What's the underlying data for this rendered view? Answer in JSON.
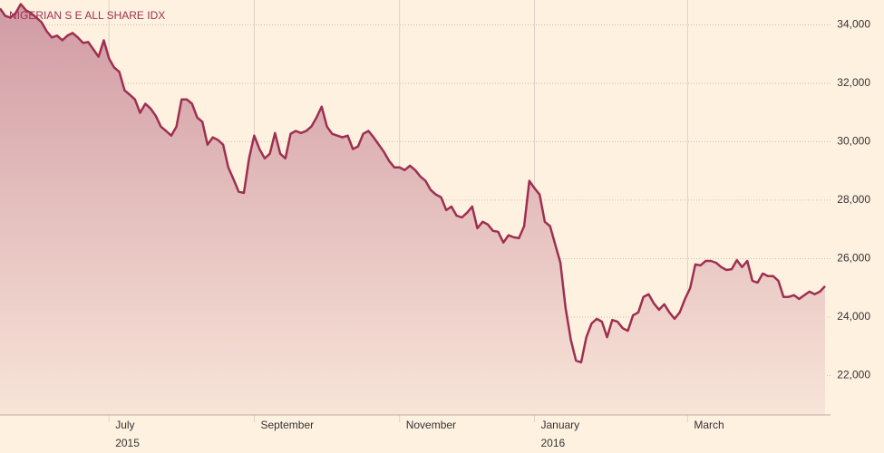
{
  "chart_data": {
    "type": "area",
    "title": "NIGERIAN S E ALL SHARE IDX",
    "color": "#9e2f50",
    "grid": true,
    "values": [
      34560,
      34310,
      34250,
      34400,
      34710,
      34500,
      34400,
      34250,
      34090,
      33780,
      33570,
      33630,
      33470,
      33630,
      33720,
      33570,
      33380,
      33410,
      33160,
      32910,
      33470,
      32850,
      32540,
      32390,
      31760,
      31610,
      31450,
      30990,
      31300,
      31140,
      30890,
      30520,
      30370,
      30210,
      30520,
      31450,
      31450,
      31300,
      30830,
      30680,
      29900,
      30150,
      30060,
      29900,
      29120,
      28720,
      28290,
      28250,
      29430,
      30210,
      29750,
      29430,
      29590,
      30300,
      29590,
      29430,
      30270,
      30370,
      30300,
      30370,
      30520,
      30830,
      31200,
      30520,
      30270,
      30210,
      30150,
      30210,
      29750,
      29840,
      30270,
      30370,
      30150,
      29900,
      29650,
      29340,
      29120,
      29120,
      29030,
      29180,
      29030,
      28810,
      28660,
      28350,
      28190,
      28100,
      27660,
      27780,
      27470,
      27410,
      27570,
      27780,
      27040,
      27260,
      27170,
      26950,
      26920,
      26550,
      26800,
      26730,
      26700,
      27110,
      28660,
      28410,
      28190,
      27260,
      27110,
      26480,
      25860,
      24310,
      23220,
      22510,
      22450,
      23310,
      23780,
      23940,
      23840,
      23310,
      23900,
      23840,
      23620,
      23530,
      24060,
      24160,
      24690,
      24780,
      24470,
      24250,
      24440,
      24160,
      23940,
      24160,
      24620,
      24990,
      25800,
      25770,
      25920,
      25920,
      25860,
      25710,
      25610,
      25640,
      25950,
      25710,
      25920,
      25240,
      25180,
      25490,
      25400,
      25400,
      25240,
      24690,
      24690,
      24750,
      24620,
      24750,
      24870,
      24780,
      24870,
      25060
    ],
    "xlim": [
      0,
      159
    ],
    "xticks": [
      {
        "value": 21,
        "label": "July",
        "year": "2015"
      },
      {
        "value": 49,
        "label": "September"
      },
      {
        "value": 77,
        "label": "November"
      },
      {
        "value": 103,
        "label": "January",
        "year": "2016"
      },
      {
        "value": 132.5,
        "label": "March"
      }
    ],
    "ylim": [
      20650,
      34850
    ],
    "yticks": [
      {
        "value": 22000,
        "label": "22,000"
      },
      {
        "value": 24000,
        "label": "24,000"
      },
      {
        "value": 26000,
        "label": "26,000"
      },
      {
        "value": 28000,
        "label": "28,000"
      },
      {
        "value": 30000,
        "label": "30,000"
      },
      {
        "value": 32000,
        "label": "32,000"
      },
      {
        "value": 34000,
        "label": "34,000"
      }
    ]
  }
}
